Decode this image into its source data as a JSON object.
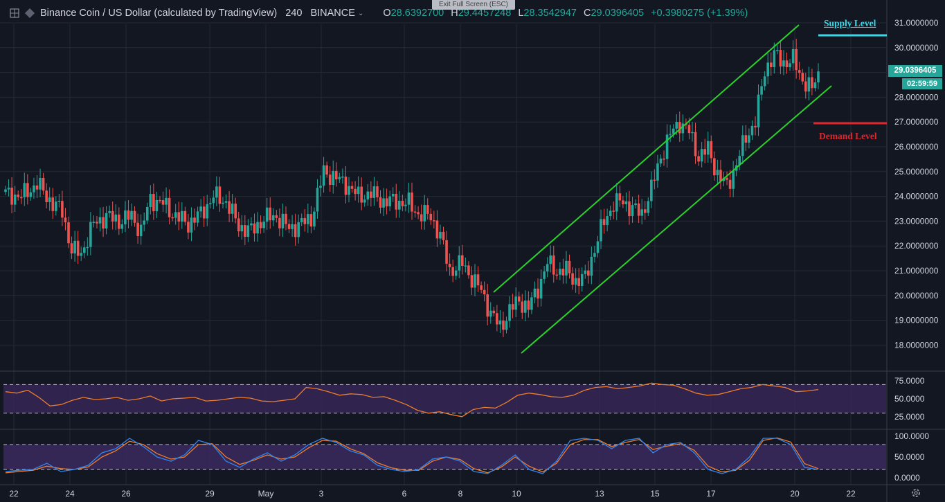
{
  "header": {
    "symbol": "Binance Coin / US Dollar (calculated by TradingView)",
    "interval": "240",
    "exchange": "BINANCE",
    "o_label": "O",
    "o_value": "28.6392700",
    "h_label": "H",
    "h_value": "29.4457248",
    "l_label": "L",
    "l_value": "28.3542947",
    "c_label": "C",
    "c_value": "29.0396405",
    "change": "+0.3980275 (+1.39%)"
  },
  "overlay": {
    "exit_fullscreen": "Exit Full Screen (ESC)"
  },
  "annotations": {
    "supply": "Supply Level",
    "demand": "Demand Level"
  },
  "price_box": {
    "price": "29.0396405",
    "countdown": "02:59:59"
  },
  "colors": {
    "background": "#131722",
    "grid": "#262a36",
    "up": "#26a69a",
    "down": "#ef5350",
    "channel": "#2cd12c",
    "supply": "#39d8e8",
    "demand": "#e0262b",
    "rsi": "#ef7d2b",
    "stoch_k": "#2f86f0",
    "stoch_d": "#ef7d2b",
    "osc_band": "#3b2a5e"
  },
  "icons": [
    "expand-icon",
    "symbol-logo-icon",
    "chevron-down-icon",
    "gear-icon"
  ],
  "chart_data": {
    "type": "candlestick",
    "y_axis": {
      "min": 17.5,
      "max": 31.5,
      "ticks": [
        "31.0000000",
        "30.0000000",
        "29.0000000",
        "28.0000000",
        "27.0000000",
        "26.0000000",
        "25.0000000",
        "24.0000000",
        "23.0000000",
        "22.0000000",
        "21.0000000",
        "20.0000000",
        "19.0000000",
        "18.0000000"
      ]
    },
    "x_axis": {
      "ticks": [
        "22",
        "24",
        "26",
        "29",
        "May",
        "3",
        "6",
        "8",
        "10",
        "13",
        "15",
        "17",
        "20",
        "22"
      ]
    },
    "supply_level": 30.5,
    "demand_level": 26.95,
    "last_close": 29.0396405,
    "price_path": [
      [
        0,
        24.1
      ],
      [
        5,
        24.0
      ],
      [
        10,
        24.5
      ],
      [
        15,
        23.7
      ],
      [
        18,
        23.4
      ],
      [
        21,
        21.8
      ],
      [
        24,
        21.7
      ],
      [
        28,
        22.9
      ],
      [
        32,
        23.2
      ],
      [
        36,
        23.0
      ],
      [
        40,
        23.2
      ],
      [
        43,
        22.6
      ],
      [
        46,
        23.9
      ],
      [
        50,
        23.7
      ],
      [
        54,
        23.2
      ],
      [
        58,
        22.9
      ],
      [
        62,
        23.3
      ],
      [
        66,
        24.0
      ],
      [
        70,
        23.8
      ],
      [
        74,
        22.8
      ],
      [
        78,
        22.6
      ],
      [
        82,
        23.1
      ],
      [
        86,
        23.2
      ],
      [
        90,
        22.7
      ],
      [
        94,
        22.9
      ],
      [
        97,
        23.1
      ],
      [
        101,
        25.0
      ],
      [
        104,
        24.8
      ],
      [
        108,
        24.5
      ],
      [
        112,
        24.0
      ],
      [
        116,
        24.1
      ],
      [
        120,
        23.8
      ],
      [
        124,
        23.8
      ],
      [
        128,
        23.7
      ],
      [
        131,
        23.3
      ],
      [
        135,
        23.2
      ],
      [
        138,
        22.4
      ],
      [
        141,
        21.0
      ],
      [
        145,
        21.3
      ],
      [
        148,
        20.7
      ],
      [
        151,
        20.2
      ],
      [
        154,
        19.3
      ],
      [
        157,
        18.7
      ],
      [
        160,
        19.4
      ],
      [
        163,
        19.8
      ],
      [
        166,
        19.5
      ],
      [
        169,
        20.3
      ],
      [
        172,
        21.3
      ],
      [
        175,
        21.0
      ],
      [
        178,
        21.0
      ],
      [
        181,
        20.6
      ],
      [
        184,
        20.7
      ],
      [
        187,
        21.9
      ],
      [
        190,
        23.0
      ],
      [
        193,
        23.7
      ],
      [
        196,
        23.8
      ],
      [
        199,
        23.5
      ],
      [
        202,
        23.3
      ],
      [
        205,
        24.3
      ],
      [
        208,
        25.6
      ],
      [
        211,
        26.5
      ],
      [
        214,
        27.0
      ],
      [
        217,
        26.6
      ],
      [
        220,
        25.6
      ],
      [
        223,
        25.9
      ],
      [
        226,
        24.9
      ],
      [
        229,
        24.4
      ],
      [
        232,
        25.3
      ],
      [
        235,
        26.4
      ],
      [
        238,
        27.0
      ],
      [
        241,
        29.1
      ],
      [
        244,
        29.7
      ],
      [
        247,
        29.4
      ],
      [
        250,
        29.5
      ],
      [
        253,
        28.7
      ],
      [
        256,
        28.3
      ],
      [
        258,
        29.04
      ]
    ]
  },
  "rsi": {
    "ticks": [
      "75.0000",
      "50.0000",
      "25.0000"
    ],
    "upper": 70,
    "lower": 30,
    "values": [
      60,
      58,
      62,
      52,
      40,
      42,
      48,
      52,
      49,
      50,
      52,
      48,
      50,
      54,
      47,
      50,
      51,
      52,
      47,
      48,
      50,
      52,
      51,
      47,
      46,
      48,
      50,
      66,
      64,
      60,
      55,
      57,
      56,
      52,
      53,
      48,
      42,
      34,
      30,
      32,
      28,
      25,
      35,
      38,
      37,
      45,
      55,
      58,
      56,
      53,
      52,
      55,
      62,
      66,
      67,
      64,
      66,
      68,
      72,
      70,
      69,
      64,
      58,
      55,
      56,
      60,
      64,
      66,
      70,
      68,
      66,
      60,
      61,
      63
    ]
  },
  "stoch": {
    "ticks": [
      "100.0000",
      "50.0000",
      "0.0000"
    ],
    "upper": 80,
    "lower": 20,
    "k": [
      15,
      18,
      20,
      35,
      15,
      20,
      30,
      60,
      70,
      95,
      75,
      50,
      40,
      55,
      90,
      80,
      40,
      25,
      45,
      60,
      40,
      55,
      80,
      95,
      85,
      65,
      55,
      30,
      20,
      15,
      20,
      45,
      50,
      40,
      15,
      10,
      30,
      55,
      20,
      10,
      40,
      90,
      95,
      90,
      70,
      90,
      95,
      60,
      80,
      85,
      60,
      20,
      10,
      20,
      50,
      95,
      95,
      80,
      25,
      20
    ],
    "d": [
      12,
      15,
      18,
      28,
      22,
      20,
      26,
      50,
      65,
      88,
      80,
      58,
      45,
      50,
      80,
      82,
      50,
      32,
      42,
      55,
      45,
      50,
      72,
      90,
      88,
      70,
      58,
      36,
      24,
      18,
      18,
      40,
      50,
      44,
      22,
      12,
      26,
      50,
      28,
      14,
      35,
      80,
      92,
      92,
      75,
      85,
      92,
      68,
      76,
      82,
      66,
      28,
      14,
      18,
      42,
      90,
      96,
      86,
      34,
      22
    ]
  }
}
